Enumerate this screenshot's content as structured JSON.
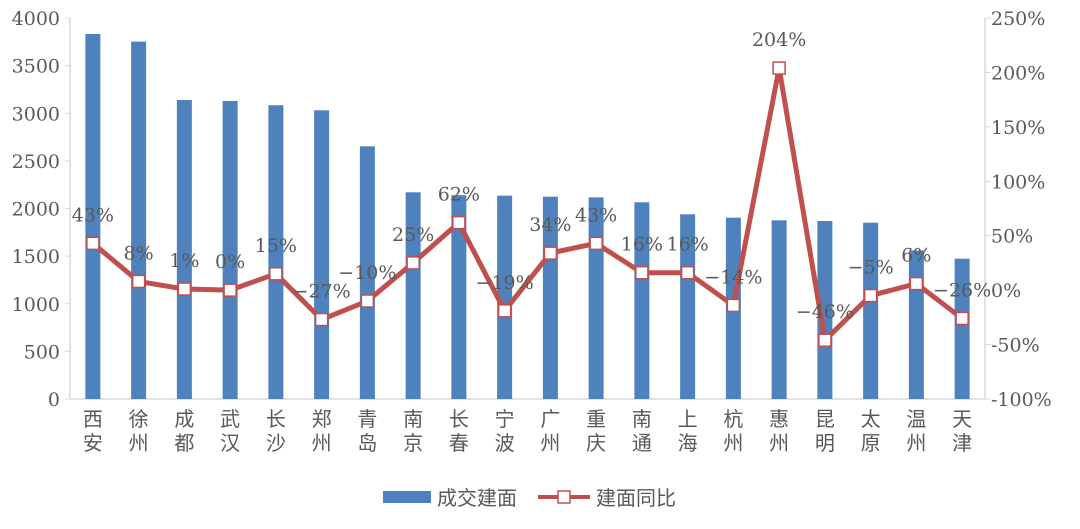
{
  "chart_data": {
    "type": "bar+line",
    "categories": [
      "西安",
      "徐州",
      "成都",
      "武汉",
      "长沙",
      "郑州",
      "青岛",
      "南京",
      "长春",
      "宁波",
      "广州",
      "重庆",
      "南通",
      "上海",
      "杭州",
      "惠州",
      "昆明",
      "太原",
      "温州",
      "天津"
    ],
    "series": [
      {
        "name": "成交建面",
        "type": "bar",
        "axis": "left",
        "color": "#4F81BD",
        "values": [
          3832,
          3752,
          3139,
          3129,
          3084,
          3031,
          2653,
          2170,
          2140,
          2135,
          2124,
          2117,
          2065,
          1939,
          1904,
          1876,
          1869,
          1851,
          1560,
          1473
        ]
      },
      {
        "name": "建面同比",
        "type": "line",
        "axis": "right",
        "color": "#C0504D",
        "values": [
          43,
          8,
          1,
          0,
          15,
          -27,
          -10,
          25,
          62,
          -19,
          34,
          43,
          16,
          16,
          -14,
          204,
          -46,
          -5,
          6,
          -26
        ],
        "labels": [
          "43%",
          "8%",
          "1%",
          "0%",
          "15%",
          "-27%",
          "-10%",
          "25%",
          "62%",
          "-19%",
          "34%",
          "43%",
          "16%",
          "16%",
          "-14%",
          "204%",
          "-46%",
          "-5%",
          "6%",
          "-26%"
        ]
      }
    ],
    "left_axis": {
      "ylim": [
        0,
        4000
      ],
      "ticks": [
        "0",
        "500",
        "1000",
        "1500",
        "2000",
        "2500",
        "3000",
        "3500",
        "4000"
      ]
    },
    "right_axis": {
      "ylim": [
        -100,
        250
      ],
      "ticks": [
        "-100%",
        "-50%",
        "0%",
        "50%",
        "100%",
        "150%",
        "200%",
        "250%"
      ]
    },
    "grid": false,
    "legend": {
      "position": "bottom",
      "entries": [
        "成交建面",
        "建面同比"
      ]
    }
  }
}
